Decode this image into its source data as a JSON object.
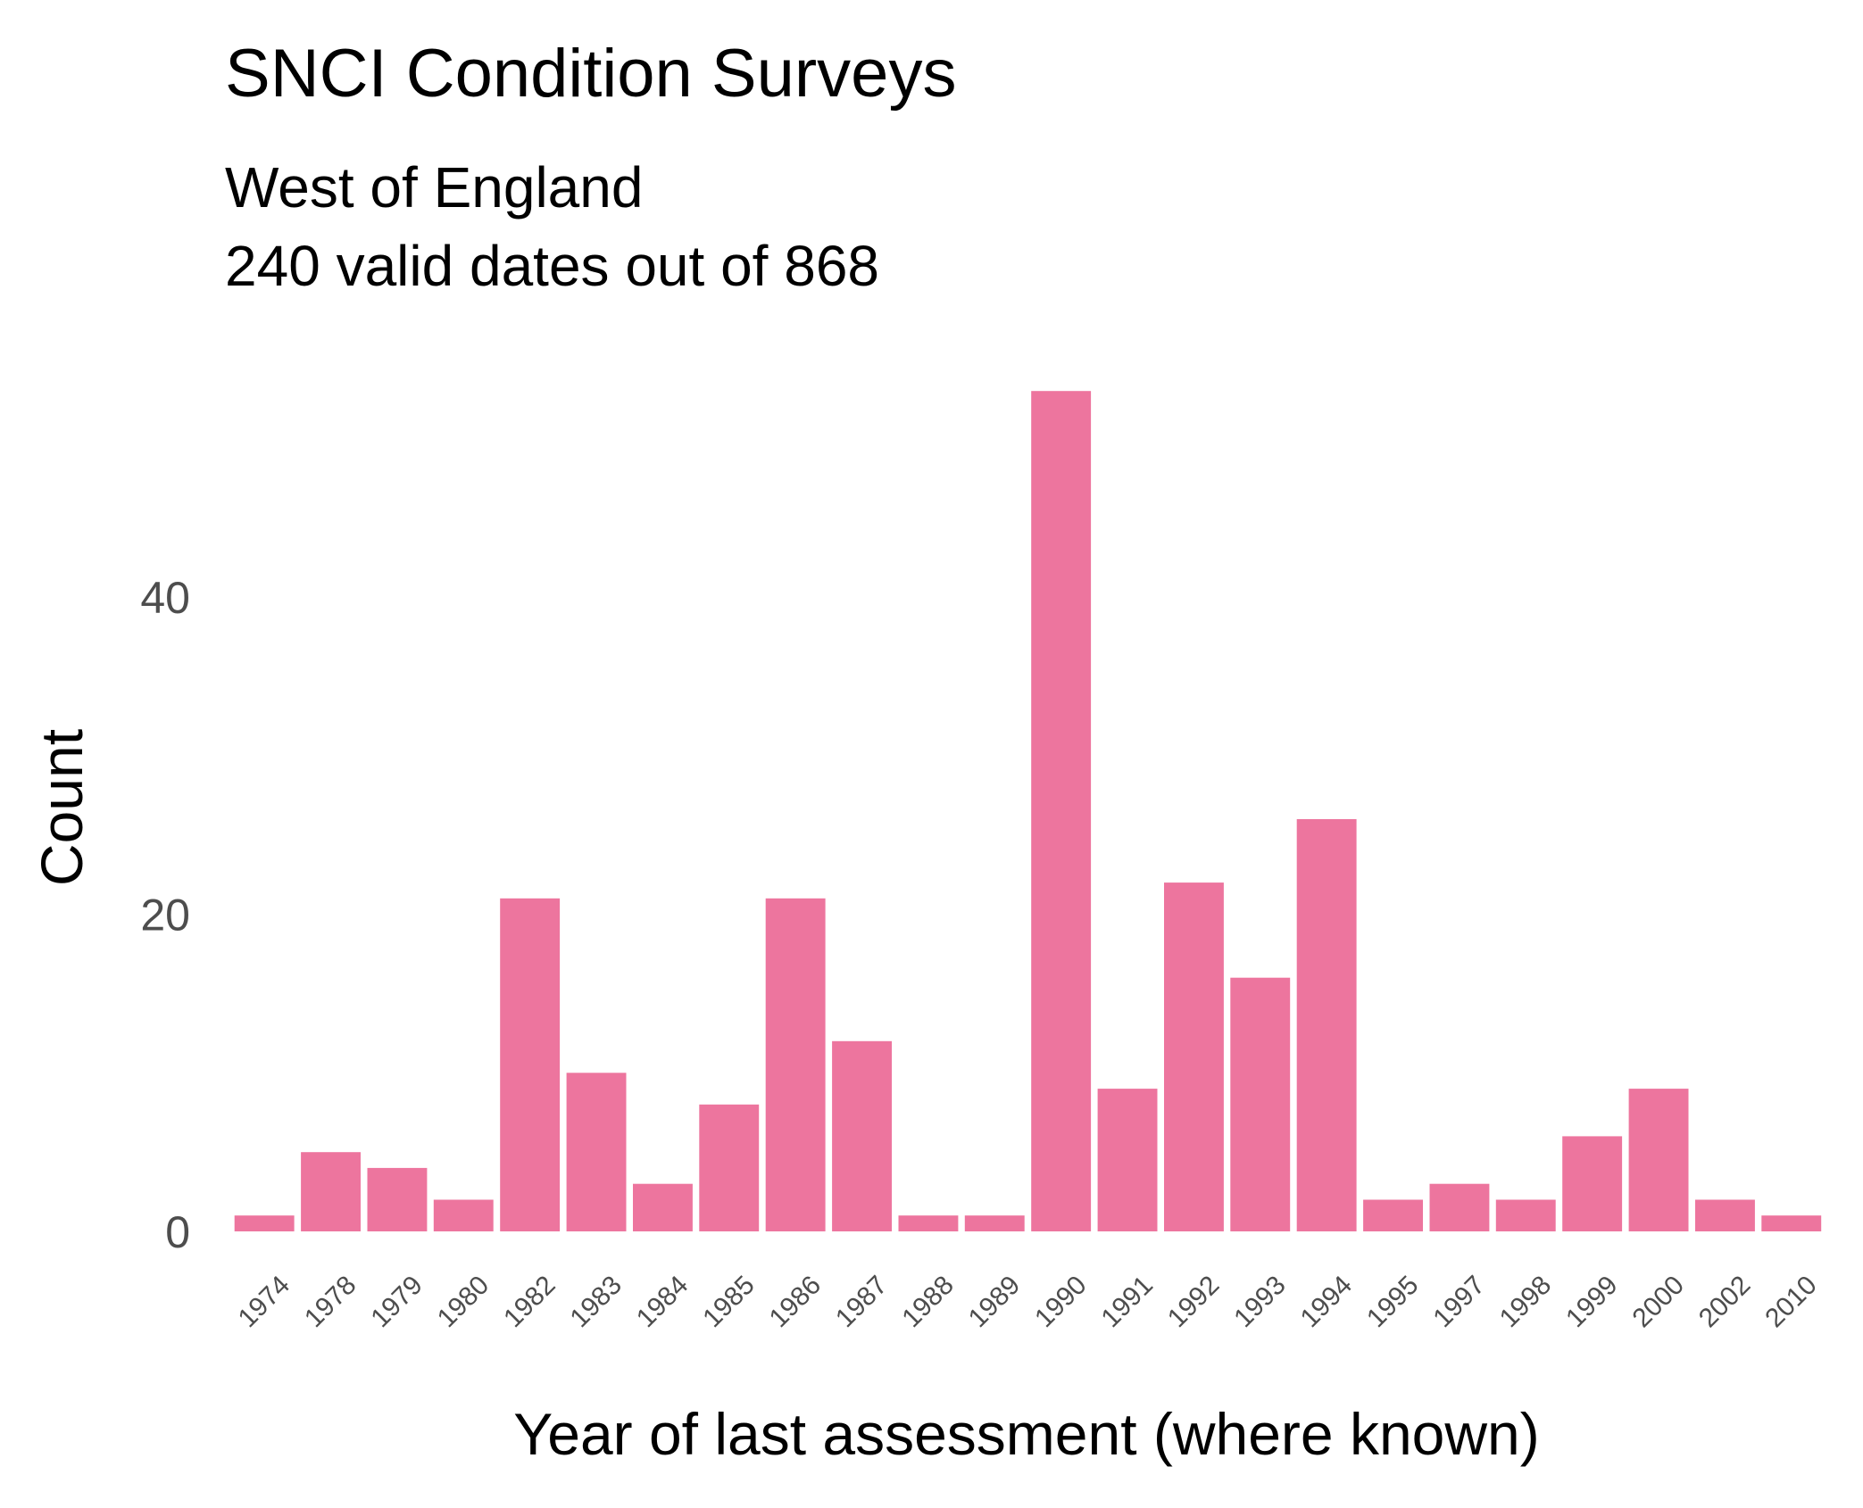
{
  "chart_data": {
    "type": "bar",
    "title": "SNCI Condition Surveys",
    "subtitle_lines": [
      "West of England",
      "240 valid dates out of 868"
    ],
    "xlabel": "Year of last assessment (where known)",
    "ylabel": "Count",
    "categories": [
      "1974",
      "1978",
      "1979",
      "1980",
      "1982",
      "1983",
      "1984",
      "1985",
      "1986",
      "1987",
      "1988",
      "1989",
      "1990",
      "1991",
      "1992",
      "1993",
      "1994",
      "1995",
      "1997",
      "1998",
      "1999",
      "2000",
      "2002",
      "2010"
    ],
    "values": [
      1,
      5,
      4,
      2,
      21,
      10,
      3,
      8,
      21,
      12,
      1,
      1,
      53,
      9,
      22,
      16,
      26,
      2,
      3,
      2,
      6,
      9,
      2,
      1
    ],
    "y_ticks": [
      "0",
      "20",
      "40"
    ],
    "ylim": [
      0,
      55
    ],
    "grid": false,
    "bar_color": "#ed759e"
  }
}
